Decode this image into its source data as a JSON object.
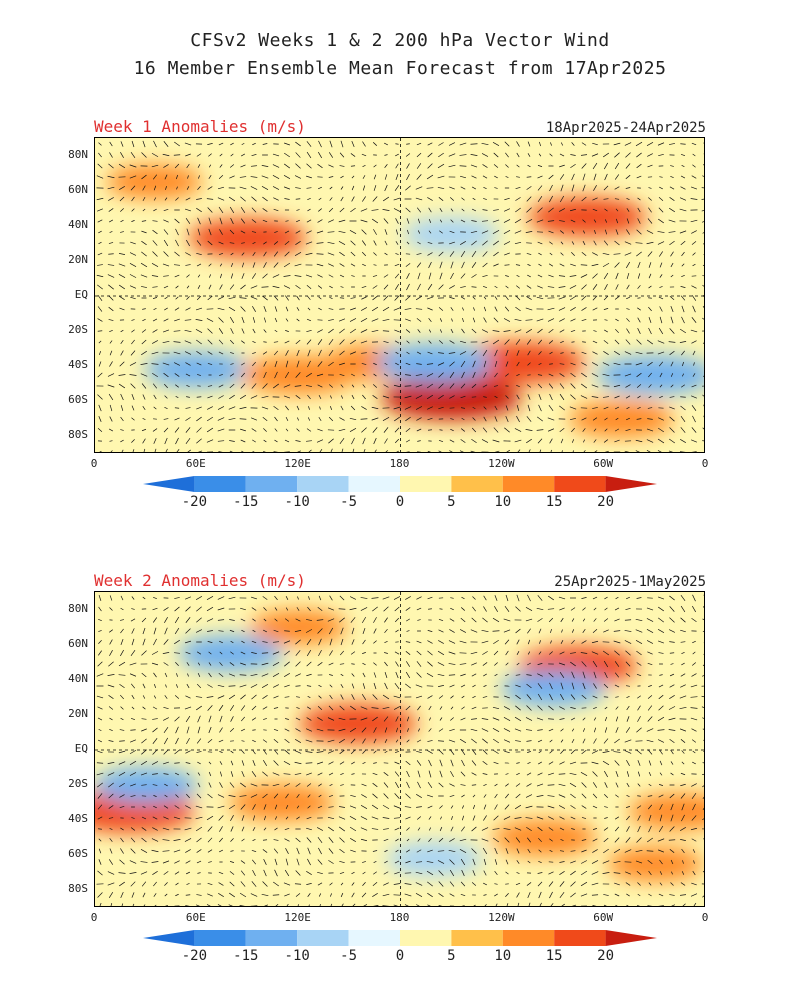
{
  "title_line1": "CFSv2 Weeks 1 & 2 200 hPa Vector Wind",
  "title_line2": "16 Member Ensemble Mean Forecast from 17Apr2025",
  "panels": [
    {
      "label": "Week 1 Anomalies (m/s)",
      "dates": "18Apr2025-24Apr2025"
    },
    {
      "label": "Week 2 Anomalies (m/s)",
      "dates": "25Apr2025-1May2025"
    }
  ],
  "lat_labels": [
    "80N",
    "60N",
    "40N",
    "20N",
    "EQ",
    "20S",
    "40S",
    "60S",
    "80S"
  ],
  "lon_labels": [
    "0",
    "60E",
    "120E",
    "180",
    "120W",
    "60W",
    "0"
  ],
  "colorbar": {
    "labels": [
      "-20",
      "-15",
      "-10",
      "-5",
      "0",
      "5",
      "10",
      "15",
      "20"
    ],
    "colors": [
      "#1e6fd9",
      "#3a8ee8",
      "#6fb0f0",
      "#a8d4f5",
      "#e6f7ff",
      "#fff7b0",
      "#ffc04a",
      "#ff8a28",
      "#f04a1a",
      "#c81e10"
    ]
  },
  "chart_data": [
    {
      "type": "heatmap",
      "title": "Week 1 Anomalies (m/s)",
      "subtitle": "18Apr2025-24Apr2025",
      "xlabel": "",
      "ylabel": "",
      "x_ticks": [
        "0",
        "60E",
        "120E",
        "180",
        "120W",
        "60W",
        "0"
      ],
      "y_ticks": [
        "80N",
        "60N",
        "40N",
        "20N",
        "EQ",
        "20S",
        "40S",
        "60S",
        "80S"
      ],
      "value_range": [
        -20,
        20
      ],
      "features": [
        {
          "lon": 90,
          "lat": 33,
          "value": 15
        },
        {
          "lon": 210,
          "lat": -58,
          "value": 20
        },
        {
          "lon": 250,
          "lat": -38,
          "value": 18
        },
        {
          "lon": 290,
          "lat": 45,
          "value": 15
        },
        {
          "lon": 310,
          "lat": -70,
          "value": 12
        },
        {
          "lon": 165,
          "lat": -38,
          "value": 12
        },
        {
          "lon": 35,
          "lat": 65,
          "value": 10
        },
        {
          "lon": 200,
          "lat": -38,
          "value": -15
        },
        {
          "lon": 330,
          "lat": -45,
          "value": -15
        },
        {
          "lon": 60,
          "lat": -42,
          "value": -12
        },
        {
          "lon": 120,
          "lat": -45,
          "value": 14
        },
        {
          "lon": 210,
          "lat": 35,
          "value": -10
        }
      ]
    },
    {
      "type": "heatmap",
      "title": "Week 2 Anomalies (m/s)",
      "subtitle": "25Apr2025-1May2025",
      "xlabel": "",
      "ylabel": "",
      "x_ticks": [
        "0",
        "60E",
        "120E",
        "180",
        "120W",
        "60W",
        "0"
      ],
      "y_ticks": [
        "80N",
        "60N",
        "40N",
        "20N",
        "EQ",
        "20S",
        "40S",
        "60S",
        "80S"
      ],
      "value_range": [
        -20,
        20
      ],
      "features": [
        {
          "lon": 20,
          "lat": -35,
          "value": 18
        },
        {
          "lon": 155,
          "lat": 15,
          "value": 15
        },
        {
          "lon": 285,
          "lat": 48,
          "value": 15
        },
        {
          "lon": 110,
          "lat": -30,
          "value": 12
        },
        {
          "lon": 265,
          "lat": -50,
          "value": 12
        },
        {
          "lon": 345,
          "lat": -35,
          "value": 12
        },
        {
          "lon": 330,
          "lat": -65,
          "value": 10
        },
        {
          "lon": 80,
          "lat": 55,
          "value": -12
        },
        {
          "lon": 30,
          "lat": -20,
          "value": -12
        },
        {
          "lon": 270,
          "lat": 35,
          "value": -12
        },
        {
          "lon": 200,
          "lat": -62,
          "value": -10
        },
        {
          "lon": 120,
          "lat": 70,
          "value": 10
        }
      ]
    }
  ]
}
